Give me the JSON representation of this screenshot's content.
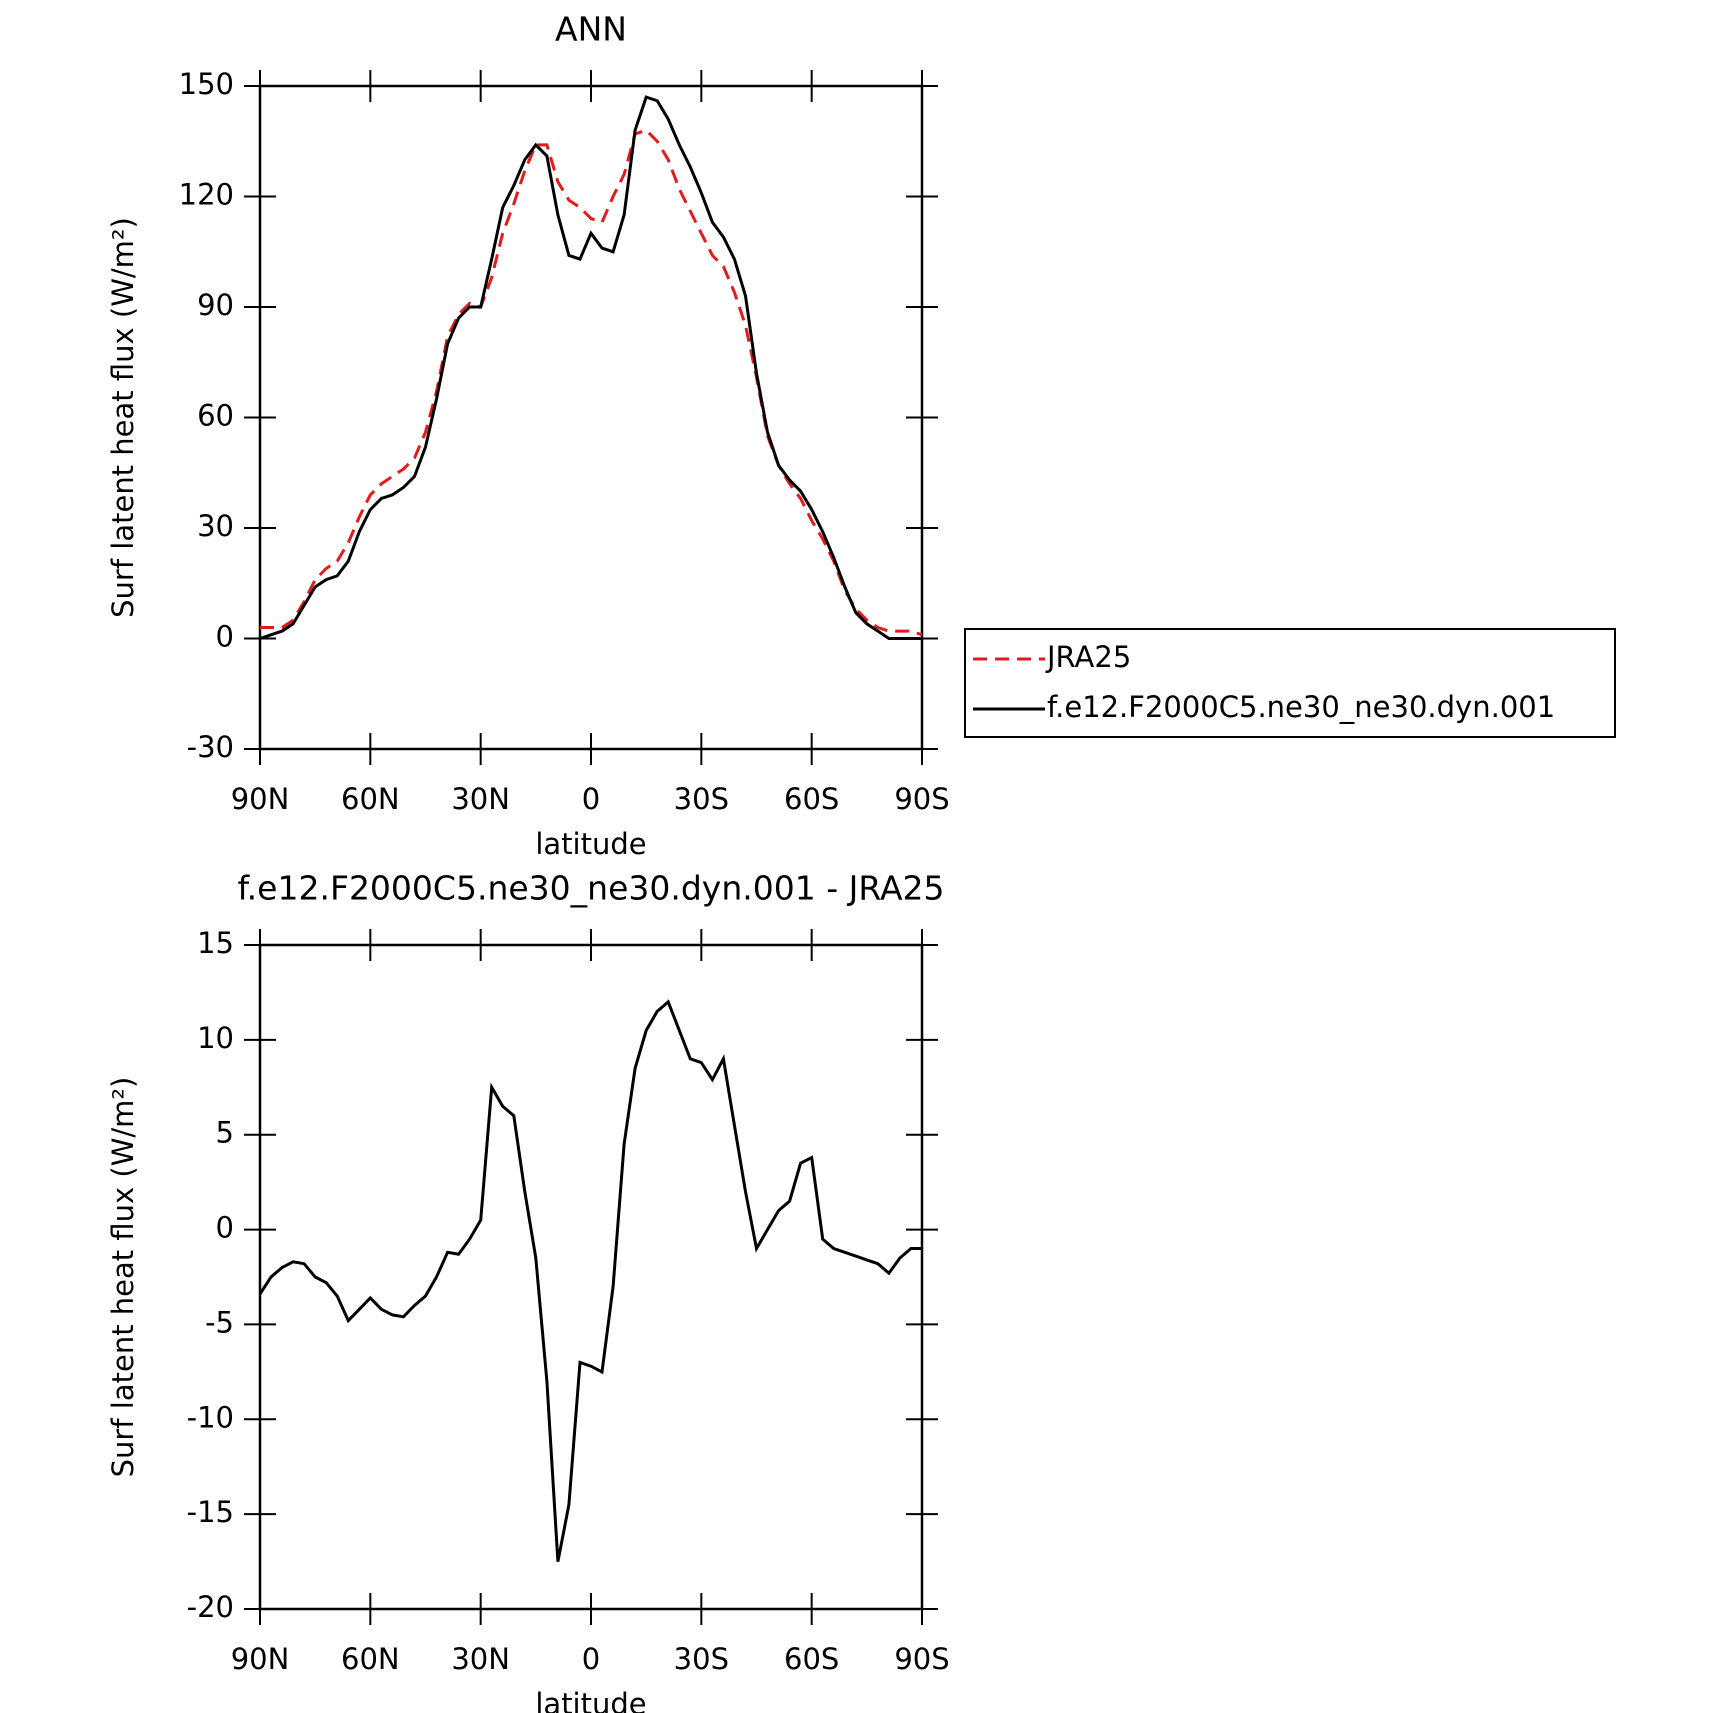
{
  "chart_data": [
    {
      "type": "line",
      "title": "ANN",
      "xlabel": "latitude",
      "ylabel": "Surf latent heat flux (W/m²)",
      "x": [
        90,
        87,
        84,
        81,
        78,
        75,
        72,
        69,
        66,
        63,
        60,
        57,
        54,
        51,
        48,
        45,
        42,
        39,
        36,
        33,
        30,
        27,
        24,
        21,
        18,
        15,
        12,
        9,
        6,
        3,
        0,
        -3,
        -6,
        -9,
        -12,
        -15,
        -18,
        -21,
        -24,
        -27,
        -30,
        -33,
        -36,
        -39,
        -42,
        -45,
        -48,
        -51,
        -54,
        -57,
        -60,
        -63,
        -66,
        -69,
        -72,
        -75,
        -78,
        -81,
        -84,
        -87,
        -90
      ],
      "series": [
        {
          "name": "JRA25",
          "color": "#e41a1c",
          "linestyle": "dashed",
          "values": [
            3,
            3,
            3,
            5,
            10,
            16,
            19,
            21,
            26,
            33,
            39,
            42,
            44,
            46,
            49,
            56,
            67,
            82,
            88,
            91,
            90,
            98,
            110,
            118,
            127,
            134,
            134,
            124,
            119,
            117,
            114,
            113,
            120,
            126,
            137,
            138,
            135,
            130,
            122,
            116,
            110,
            104,
            101,
            94,
            85,
            71,
            55,
            47,
            42,
            38,
            32,
            27,
            21,
            13,
            8,
            5,
            3,
            2,
            2,
            2,
            1
          ]
        },
        {
          "name": "f.e12.F2000C5.ne30_ne30.dyn.001",
          "color": "#000000",
          "linestyle": "solid",
          "values": [
            0,
            1,
            2,
            4,
            9,
            14,
            16,
            17,
            21,
            29,
            35,
            38,
            39,
            41,
            44,
            52,
            65,
            80,
            87,
            90,
            90,
            103,
            117,
            123,
            130,
            134,
            131,
            115,
            104,
            103,
            110,
            106,
            105,
            115,
            138,
            147,
            146,
            141,
            134,
            128,
            121,
            113,
            109,
            103,
            93,
            72,
            56,
            47,
            43,
            40,
            35,
            29,
            22,
            14,
            7,
            4,
            2,
            0,
            0,
            0,
            0
          ]
        }
      ],
      "xlim": [
        90,
        -90
      ],
      "xticks": [
        {
          "value": 90,
          "label": "90N"
        },
        {
          "value": 60,
          "label": "60N"
        },
        {
          "value": 30,
          "label": "30N"
        },
        0,
        {
          "value": -30,
          "label": "30S"
        },
        {
          "value": -60,
          "label": "60S"
        },
        {
          "value": -90,
          "label": "90S"
        }
      ],
      "ylim": [
        -30,
        150
      ],
      "yticks": [
        -30,
        0,
        30,
        60,
        90,
        120,
        150
      ],
      "legend": "right"
    },
    {
      "type": "line",
      "title": "f.e12.F2000C5.ne30_ne30.dyn.001 - JRA25",
      "xlabel": "latitude",
      "ylabel": "Surf latent heat flux (W/m²)",
      "x": [
        90,
        87,
        84,
        81,
        78,
        75,
        72,
        69,
        66,
        63,
        60,
        57,
        54,
        51,
        48,
        45,
        42,
        39,
        36,
        33,
        30,
        27,
        24,
        21,
        18,
        15,
        12,
        9,
        6,
        3,
        0,
        -3,
        -6,
        -9,
        -12,
        -15,
        -18,
        -21,
        -24,
        -27,
        -30,
        -33,
        -36,
        -39,
        -42,
        -45,
        -48,
        -51,
        -54,
        -57,
        -60,
        -63,
        -66,
        -69,
        -72,
        -75,
        -78,
        -81,
        -84,
        -87,
        -90
      ],
      "series": [
        {
          "color": "#000000",
          "linestyle": "solid",
          "values": [
            -3.4,
            -2.5,
            -2.0,
            -1.7,
            -1.8,
            -2.5,
            -2.8,
            -3.5,
            -4.8,
            -4.2,
            -3.6,
            -4.2,
            -4.5,
            -4.6,
            -4.0,
            -3.5,
            -2.5,
            -1.2,
            -1.3,
            -0.5,
            0.5,
            7.5,
            6.5,
            6.0,
            2.0,
            -1.5,
            -8.0,
            -17.5,
            -14.5,
            -7.0,
            -7.2,
            -7.5,
            -3.0,
            4.5,
            8.5,
            10.5,
            11.5,
            12.0,
            10.5,
            9.0,
            8.8,
            7.9,
            9.0,
            5.5,
            2.0,
            -1.0,
            0.0,
            1.0,
            1.5,
            3.5,
            3.8,
            -0.5,
            -1.0,
            -1.2,
            -1.4,
            -1.6,
            -1.8,
            -2.3,
            -1.5,
            -1.0,
            -1.0
          ]
        }
      ],
      "xlim": [
        90,
        -90
      ],
      "xticks": [
        {
          "value": 90,
          "label": "90N"
        },
        {
          "value": 60,
          "label": "60N"
        },
        {
          "value": 30,
          "label": "30N"
        },
        0,
        {
          "value": -30,
          "label": "30S"
        },
        {
          "value": -60,
          "label": "60S"
        },
        {
          "value": -90,
          "label": "90S"
        }
      ],
      "ylim": [
        -20,
        15
      ],
      "yticks": [
        -20,
        -15,
        -10,
        -5,
        0,
        5,
        10,
        15
      ]
    }
  ]
}
